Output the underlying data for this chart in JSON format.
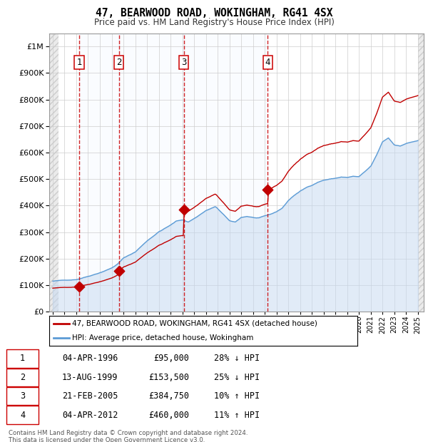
{
  "title": "47, BEARWOOD ROAD, WOKINGHAM, RG41 4SX",
  "subtitle": "Price paid vs. HM Land Registry's House Price Index (HPI)",
  "footer_line1": "Contains HM Land Registry data © Crown copyright and database right 2024.",
  "footer_line2": "This data is licensed under the Open Government Licence v3.0.",
  "legend_label1": "47, BEARWOOD ROAD, WOKINGHAM, RG41 4SX (detached house)",
  "legend_label2": "HPI: Average price, detached house, Wokingham",
  "sale_date_nums": [
    1996.25,
    1999.62,
    2005.13,
    2012.25
  ],
  "sale_prices": [
    95000,
    153500,
    384750,
    460000
  ],
  "sale_labels": [
    "1",
    "2",
    "3",
    "4"
  ],
  "table_rows": [
    [
      "1",
      "04-APR-1996",
      "£95,000",
      "28% ↓ HPI"
    ],
    [
      "2",
      "13-AUG-1999",
      "£153,500",
      "25% ↓ HPI"
    ],
    [
      "3",
      "21-FEB-2005",
      "£384,750",
      "10% ↑ HPI"
    ],
    [
      "4",
      "04-APR-2012",
      "£460,000",
      "11% ↑ HPI"
    ]
  ],
  "hpi_color": "#5b9bd5",
  "hpi_fill_color": "#c5d9f1",
  "price_color": "#c00000",
  "vline_color": "#cc0000",
  "shade_color": "#ddeeff",
  "ylim": [
    0,
    1050000
  ],
  "yticks": [
    0,
    100000,
    200000,
    300000,
    400000,
    500000,
    600000,
    700000,
    800000,
    900000,
    1000000
  ],
  "xlim_start": 1993.7,
  "xlim_end": 2025.5,
  "chart_bg": "#ffffff",
  "grid_color": "#cccccc",
  "hatch_left_end": 1994.5,
  "hatch_right_start": 2025.0
}
